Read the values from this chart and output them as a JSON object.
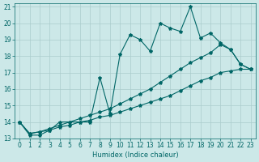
{
  "xlabel": "Humidex (Indice chaleur)",
  "background_color": "#cce8e8",
  "grid_color": "#aacccc",
  "line_color": "#006666",
  "xlim": [
    -0.5,
    23.5
  ],
  "ylim": [
    13,
    21.2
  ],
  "yticks": [
    13,
    14,
    15,
    16,
    17,
    18,
    19,
    20,
    21
  ],
  "xticks": [
    0,
    1,
    2,
    3,
    4,
    5,
    6,
    7,
    8,
    9,
    10,
    11,
    12,
    13,
    14,
    15,
    16,
    17,
    18,
    19,
    20,
    21,
    22,
    23
  ],
  "series": [
    {
      "x": [
        0,
        1,
        2,
        3,
        4,
        5,
        6,
        7,
        8,
        9,
        10,
        11,
        12,
        13,
        14,
        15,
        16,
        17,
        18,
        19,
        20,
        21,
        22,
        23
      ],
      "y": [
        14.0,
        13.2,
        13.2,
        13.5,
        14.0,
        14.0,
        14.0,
        14.0,
        16.7,
        14.5,
        18.1,
        19.3,
        19.0,
        18.3,
        20.0,
        19.7,
        19.5,
        21.0,
        19.1,
        19.4,
        18.8,
        18.4,
        17.5,
        17.2
      ]
    },
    {
      "x": [
        0,
        1,
        2,
        3,
        4,
        5,
        6,
        7,
        8,
        9,
        10,
        11,
        12,
        13,
        14,
        15,
        16,
        17,
        18,
        19,
        20,
        21,
        22,
        23
      ],
      "y": [
        14.0,
        13.3,
        13.4,
        13.6,
        13.8,
        14.0,
        14.2,
        14.4,
        14.6,
        14.8,
        15.1,
        15.4,
        15.7,
        16.0,
        16.4,
        16.8,
        17.2,
        17.6,
        17.9,
        18.2,
        18.7,
        18.4,
        17.5,
        17.2
      ]
    },
    {
      "x": [
        0,
        1,
        2,
        3,
        4,
        5,
        6,
        7,
        8,
        9,
        10,
        11,
        12,
        13,
        14,
        15,
        16,
        17,
        18,
        19,
        20,
        21,
        22,
        23
      ],
      "y": [
        14.0,
        13.3,
        13.4,
        13.5,
        13.7,
        13.8,
        14.0,
        14.1,
        14.3,
        14.4,
        14.6,
        14.8,
        15.0,
        15.2,
        15.4,
        15.6,
        15.9,
        16.2,
        16.5,
        16.7,
        17.0,
        17.1,
        17.2,
        17.2
      ]
    }
  ]
}
